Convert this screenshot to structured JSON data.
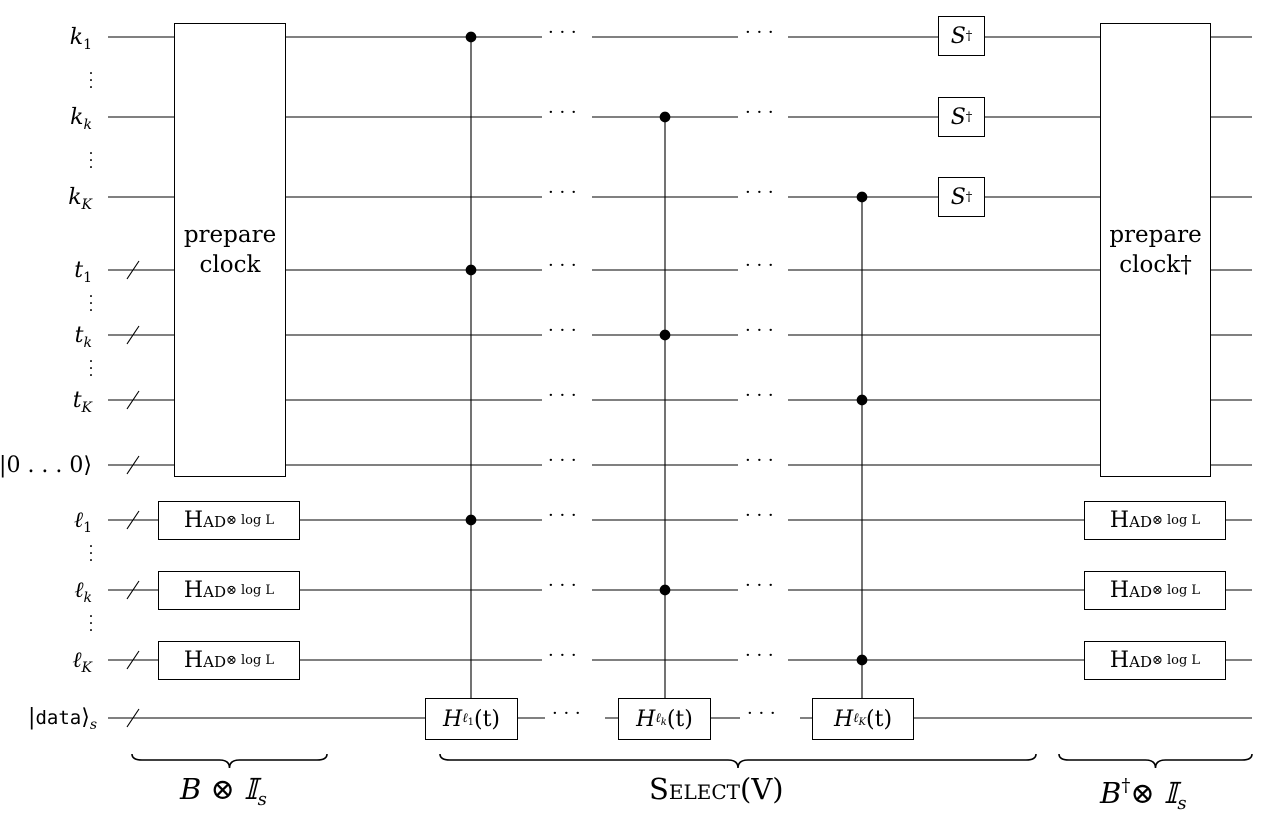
{
  "wires": [
    {
      "id": "k1",
      "var": "k",
      "sub": "1"
    },
    {
      "id": "kk",
      "var": "k",
      "sub": "k"
    },
    {
      "id": "kK",
      "var": "k",
      "sub": "K"
    },
    {
      "id": "t1",
      "var": "t",
      "sub": "1"
    },
    {
      "id": "tk",
      "var": "t",
      "sub": "k"
    },
    {
      "id": "tK",
      "var": "t",
      "sub": "K"
    },
    {
      "id": "anc",
      "var": "|0 . . . 0⟩",
      "sub": ""
    },
    {
      "id": "l1",
      "var": "ℓ",
      "sub": "1"
    },
    {
      "id": "lk",
      "var": "ℓ",
      "sub": "k"
    },
    {
      "id": "lK",
      "var": "ℓ",
      "sub": "K"
    },
    {
      "id": "data",
      "var": "|",
      "mono": "data",
      "close": "⟩",
      "sub": "s"
    }
  ],
  "gates": {
    "prepare_left": [
      "prepare",
      "clock"
    ],
    "prepare_right": [
      "prepare",
      "clock†"
    ],
    "had_name": "Had",
    "had_power": "⊗ log L",
    "s_dagger": "S",
    "dagger": "†",
    "h_gate": "H",
    "h_arg": "(t)",
    "h_subs": [
      [
        "ℓ",
        "1"
      ],
      [
        "ℓ",
        "k"
      ],
      [
        "ℓ",
        "K"
      ]
    ]
  },
  "ellipsis": "· · ·",
  "braces": {
    "left": "B ⊗ 𝕀",
    "left_sub": "s",
    "middle_sc": "Select",
    "middle_arg": "(V)",
    "right": "B",
    "right_sup": "†",
    "right_rest": "⊗ 𝕀",
    "right_sub": "s"
  }
}
